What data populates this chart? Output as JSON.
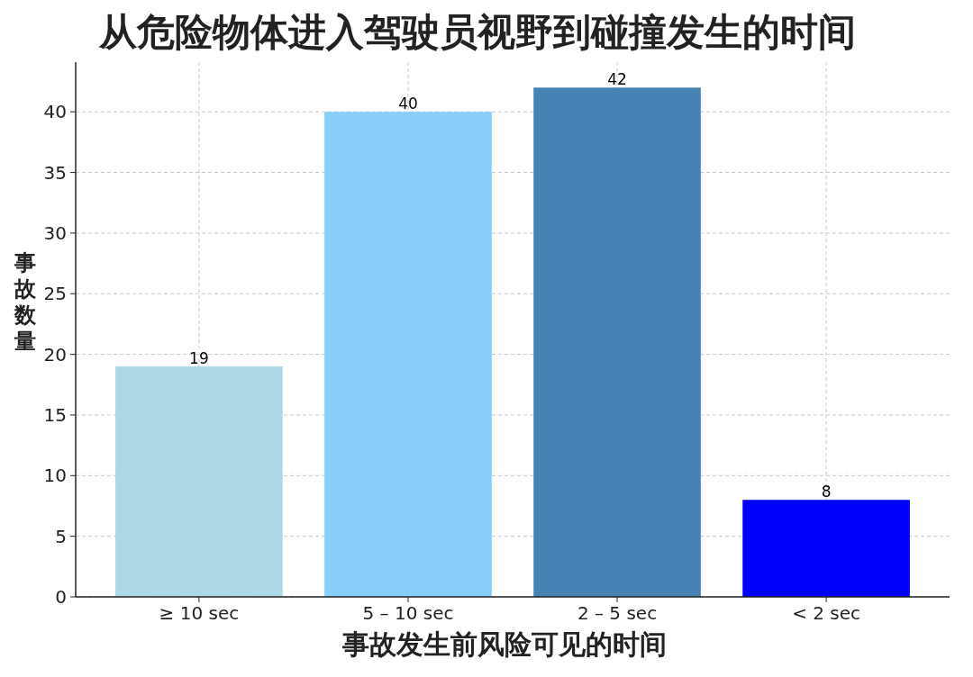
{
  "chart_data": {
    "type": "bar",
    "title": "从危险物体进入驾驶员视野到碰撞发生的时间",
    "xlabel": "事故发生前风险可见的时间",
    "ylabel": "事故数量",
    "categories": [
      "≥ 10 sec",
      "5 – 10 sec",
      "2 – 5 sec",
      "< 2 sec"
    ],
    "values": [
      19,
      40,
      42,
      8
    ],
    "colors": [
      "#add8e6",
      "#87cefa",
      "#4682b4",
      "#0000ff"
    ],
    "ylim": [
      0,
      44.1
    ],
    "yticks": [
      0,
      5,
      10,
      15,
      20,
      25,
      30,
      35,
      40
    ],
    "grid": true,
    "data_labels": true
  }
}
